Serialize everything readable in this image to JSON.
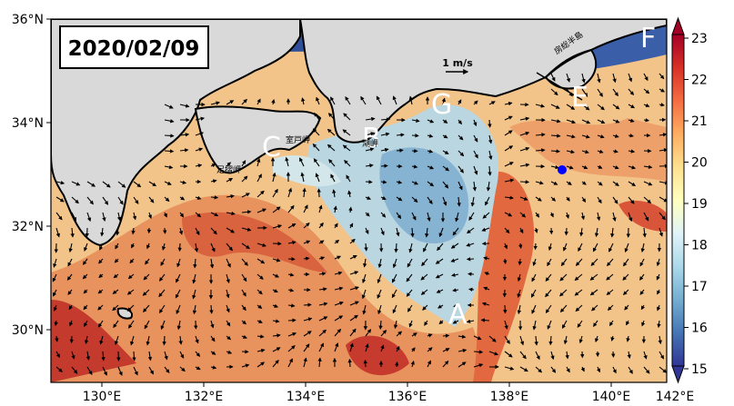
{
  "date": "2020/02/09",
  "scale_label": "1 m/s",
  "lat_ticks": [
    "36°N",
    "34°N",
    "32°N",
    "30°N"
  ],
  "lon_ticks": [
    "130°E",
    "132°E",
    "134°E",
    "136°E",
    "138°E",
    "140°E",
    "142°E"
  ],
  "colorbar_ticks": [
    "23",
    "22",
    "21",
    "20",
    "19",
    "18",
    "17",
    "16",
    "15"
  ],
  "point_labels": [
    "A",
    "B",
    "C",
    "E",
    "F",
    "G"
  ],
  "place_labels": {
    "muroto": "室戸岬",
    "shionomisaki": "潮岬",
    "ashizuri": "足摺岬",
    "boso": "房総半島"
  },
  "colors": {
    "land": "#d9d9d9",
    "marker": "#0000ff",
    "colormap": [
      "#313695",
      "#4575b4",
      "#74add1",
      "#abd9e9",
      "#e0f3f8",
      "#ffffbf",
      "#fee090",
      "#fdae61",
      "#f46d43",
      "#d73027",
      "#a50026"
    ]
  }
}
